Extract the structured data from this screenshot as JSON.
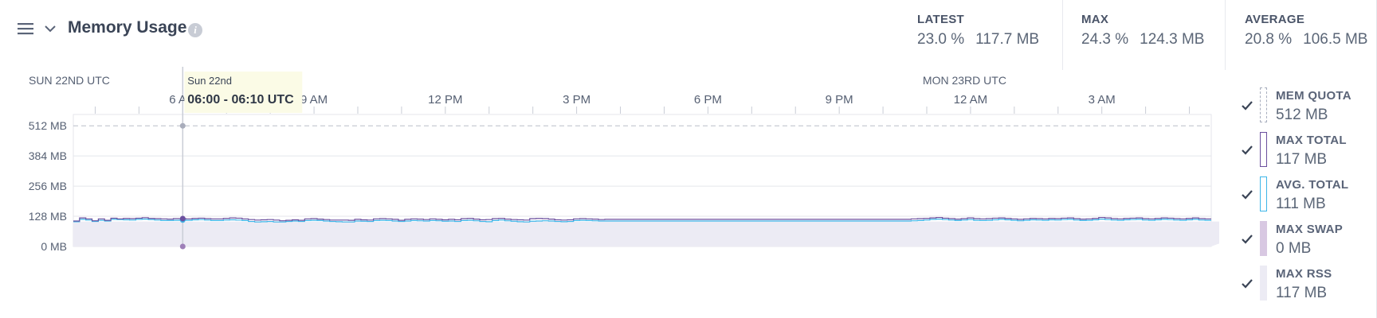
{
  "header": {
    "title": "Memory Usage",
    "info_glyph": "i",
    "stats": [
      {
        "label": "LATEST",
        "pct": "23.0 %",
        "mb": "117.7 MB"
      },
      {
        "label": "MAX",
        "pct": "24.3 %",
        "mb": "124.3 MB"
      },
      {
        "label": "AVERAGE",
        "pct": "20.8 %",
        "mb": "106.5 MB"
      }
    ]
  },
  "tooltip": {
    "date": "Sun 22nd",
    "range": "06:00 - 06:10 UTC"
  },
  "legend": [
    {
      "name": "MEM QUOTA",
      "value": "512 MB",
      "color": "#a7adbd",
      "style": "dashed"
    },
    {
      "name": "MAX TOTAL",
      "value": "117 MB",
      "color": "#6b4f9e",
      "style": "outline"
    },
    {
      "name": "AVG. TOTAL",
      "value": "111 MB",
      "color": "#3db5e8",
      "style": "outline"
    },
    {
      "name": "MAX SWAP",
      "value": "0 MB",
      "color": "#d8c8e2",
      "style": "fill"
    },
    {
      "name": "MAX RSS",
      "value": "117 MB",
      "color": "#ecebf4",
      "style": "fill"
    }
  ],
  "chart_data": {
    "type": "line",
    "x_start": "Sun 22nd 03:30 UTC",
    "x_end": "Mon 23rd 05:30 UTC",
    "x_step": "10 min",
    "date_labels": [
      {
        "text": "SUN 22ND UTC",
        "hour": 0
      },
      {
        "text": "MON 23RD UTC",
        "hour": 24
      }
    ],
    "x_ticks": [
      {
        "label": "6 AM",
        "hour": 6
      },
      {
        "label": "9 AM",
        "hour": 9
      },
      {
        "label": "12 PM",
        "hour": 12
      },
      {
        "label": "3 PM",
        "hour": 15
      },
      {
        "label": "6 PM",
        "hour": 18
      },
      {
        "label": "9 PM",
        "hour": 21
      },
      {
        "label": "12 AM",
        "hour": 24
      },
      {
        "label": "3 AM",
        "hour": 27
      }
    ],
    "y_ticks": [
      {
        "label": "512 MB",
        "value": 512
      },
      {
        "label": "384 MB",
        "value": 384
      },
      {
        "label": "256 MB",
        "value": 256
      },
      {
        "label": "128 MB",
        "value": 128
      },
      {
        "label": "0 MB",
        "value": 0
      }
    ],
    "ylim": [
      0,
      560
    ],
    "xlim_hours": [
      3.5,
      29.5
    ],
    "quota_mb": 512,
    "hover_hour": 6.0,
    "grid": true,
    "legend_position": "right",
    "series": [
      {
        "name": "MAX TOTAL",
        "color": "#6b4f9e",
        "values": [
          108,
          121,
          117,
          109,
          117,
          111,
          120,
          117,
          119,
          118,
          120,
          122,
          119,
          118,
          117,
          116,
          118,
          118,
          117,
          119,
          120,
          118,
          117,
          117,
          119,
          121,
          120,
          117,
          114,
          112,
          113,
          114,
          112,
          109,
          111,
          113,
          111,
          117,
          118,
          116,
          114,
          112,
          112,
          112,
          111,
          115,
          113,
          112,
          117,
          118,
          117,
          115,
          111,
          115,
          117,
          116,
          114,
          117,
          115,
          113,
          115,
          113,
          118,
          119,
          116,
          113,
          114,
          118,
          119,
          116,
          114,
          113,
          112,
          118,
          119,
          118,
          116,
          113,
          112,
          113,
          117,
          118,
          117,
          116,
          114,
          115,
          115,
          115,
          115,
          115,
          115,
          115,
          115,
          115,
          115,
          115,
          115,
          115,
          115,
          115,
          115,
          115,
          115,
          115,
          115,
          115,
          115,
          115,
          115,
          115,
          115,
          115,
          115,
          115,
          115,
          115,
          115,
          115,
          115,
          115,
          115,
          115,
          115,
          115,
          115,
          115,
          115,
          115,
          115,
          115,
          115,
          115,
          115,
          115,
          117,
          118,
          119,
          121,
          123,
          120,
          118,
          116,
          118,
          121,
          118,
          117,
          118,
          120,
          121,
          119,
          117,
          115,
          117,
          119,
          118,
          117,
          119,
          118,
          120,
          121,
          118,
          116,
          117,
          119,
          123,
          121,
          118,
          117,
          119,
          120,
          121,
          118,
          117,
          119,
          121,
          120,
          118,
          117,
          119,
          121,
          118,
          117
        ]
      },
      {
        "name": "AVG. TOTAL",
        "color": "#3db5e8",
        "values": [
          105,
          115,
          112,
          106,
          111,
          108,
          115,
          114,
          113,
          112,
          115,
          116,
          114,
          112,
          110,
          110,
          111,
          112,
          111,
          113,
          114,
          112,
          110,
          110,
          112,
          113,
          112,
          110,
          106,
          104,
          105,
          106,
          104,
          104,
          106,
          108,
          106,
          110,
          111,
          110,
          108,
          106,
          105,
          104,
          104,
          108,
          107,
          106,
          110,
          111,
          110,
          108,
          106,
          108,
          110,
          109,
          108,
          110,
          109,
          107,
          108,
          106,
          110,
          111,
          109,
          106,
          105,
          110,
          112,
          109,
          107,
          105,
          104,
          107,
          108,
          109,
          108,
          106,
          105,
          106,
          110,
          111,
          110,
          109,
          108,
          108,
          108,
          108,
          108,
          108,
          108,
          108,
          108,
          108,
          108,
          108,
          108,
          108,
          108,
          108,
          108,
          108,
          108,
          108,
          108,
          108,
          108,
          108,
          108,
          108,
          108,
          108,
          108,
          108,
          108,
          108,
          108,
          108,
          108,
          108,
          108,
          108,
          108,
          108,
          108,
          108,
          108,
          108,
          108,
          108,
          108,
          108,
          108,
          108,
          109,
          110,
          112,
          115,
          116,
          114,
          112,
          110,
          112,
          114,
          111,
          110,
          111,
          113,
          115,
          113,
          111,
          109,
          111,
          113,
          112,
          111,
          113,
          112,
          114,
          115,
          112,
          110,
          111,
          113,
          116,
          114,
          112,
          111,
          113,
          114,
          115,
          112,
          111,
          113,
          115,
          114,
          112,
          111,
          113,
          115,
          112,
          111
        ]
      },
      {
        "name": "MAX RSS",
        "color": "#ecebf4",
        "fill": true,
        "values": [
          106,
          106,
          106,
          106,
          106,
          106,
          106,
          106,
          106,
          106,
          106,
          106,
          106,
          106,
          106,
          106,
          106,
          106,
          106,
          106,
          106,
          106,
          106,
          106,
          106,
          106,
          106,
          106,
          106,
          106,
          106,
          106,
          106,
          106,
          106,
          106,
          106,
          106,
          106,
          106,
          106,
          106,
          106,
          106,
          106,
          106,
          106,
          106,
          106,
          106,
          106,
          106,
          106,
          106,
          106,
          106,
          106,
          106,
          106,
          106,
          106,
          106,
          106,
          106,
          106,
          106,
          106,
          106,
          106,
          106,
          106,
          106,
          106,
          106,
          106,
          106,
          106,
          106,
          106,
          106,
          106,
          106,
          106,
          106,
          106,
          106,
          106,
          106,
          106,
          106,
          106,
          106,
          106,
          106,
          106,
          106,
          106,
          106,
          106,
          106,
          106,
          106,
          106,
          106,
          106,
          106,
          106,
          106,
          106,
          106,
          106,
          106,
          106,
          106,
          106,
          106,
          106,
          106,
          106,
          106,
          106,
          106,
          106,
          106,
          106,
          106,
          106,
          106,
          106,
          106,
          106,
          106,
          106,
          106,
          106,
          106,
          106,
          106,
          106,
          106,
          106,
          106,
          106,
          106,
          106,
          106,
          106,
          106,
          106,
          106,
          106,
          106,
          106,
          106,
          106,
          106,
          106,
          106,
          106,
          106,
          106,
          106,
          106,
          106,
          106,
          106,
          106,
          106,
          106,
          106,
          106,
          106,
          106,
          106,
          106,
          106,
          106,
          106,
          106,
          106,
          106,
          106,
          106,
          106,
          106,
          106,
          106,
          106,
          106,
          106,
          106,
          106,
          106
        ]
      },
      {
        "name": "MAX SWAP",
        "color": "#d8c8e2",
        "values": []
      }
    ]
  }
}
